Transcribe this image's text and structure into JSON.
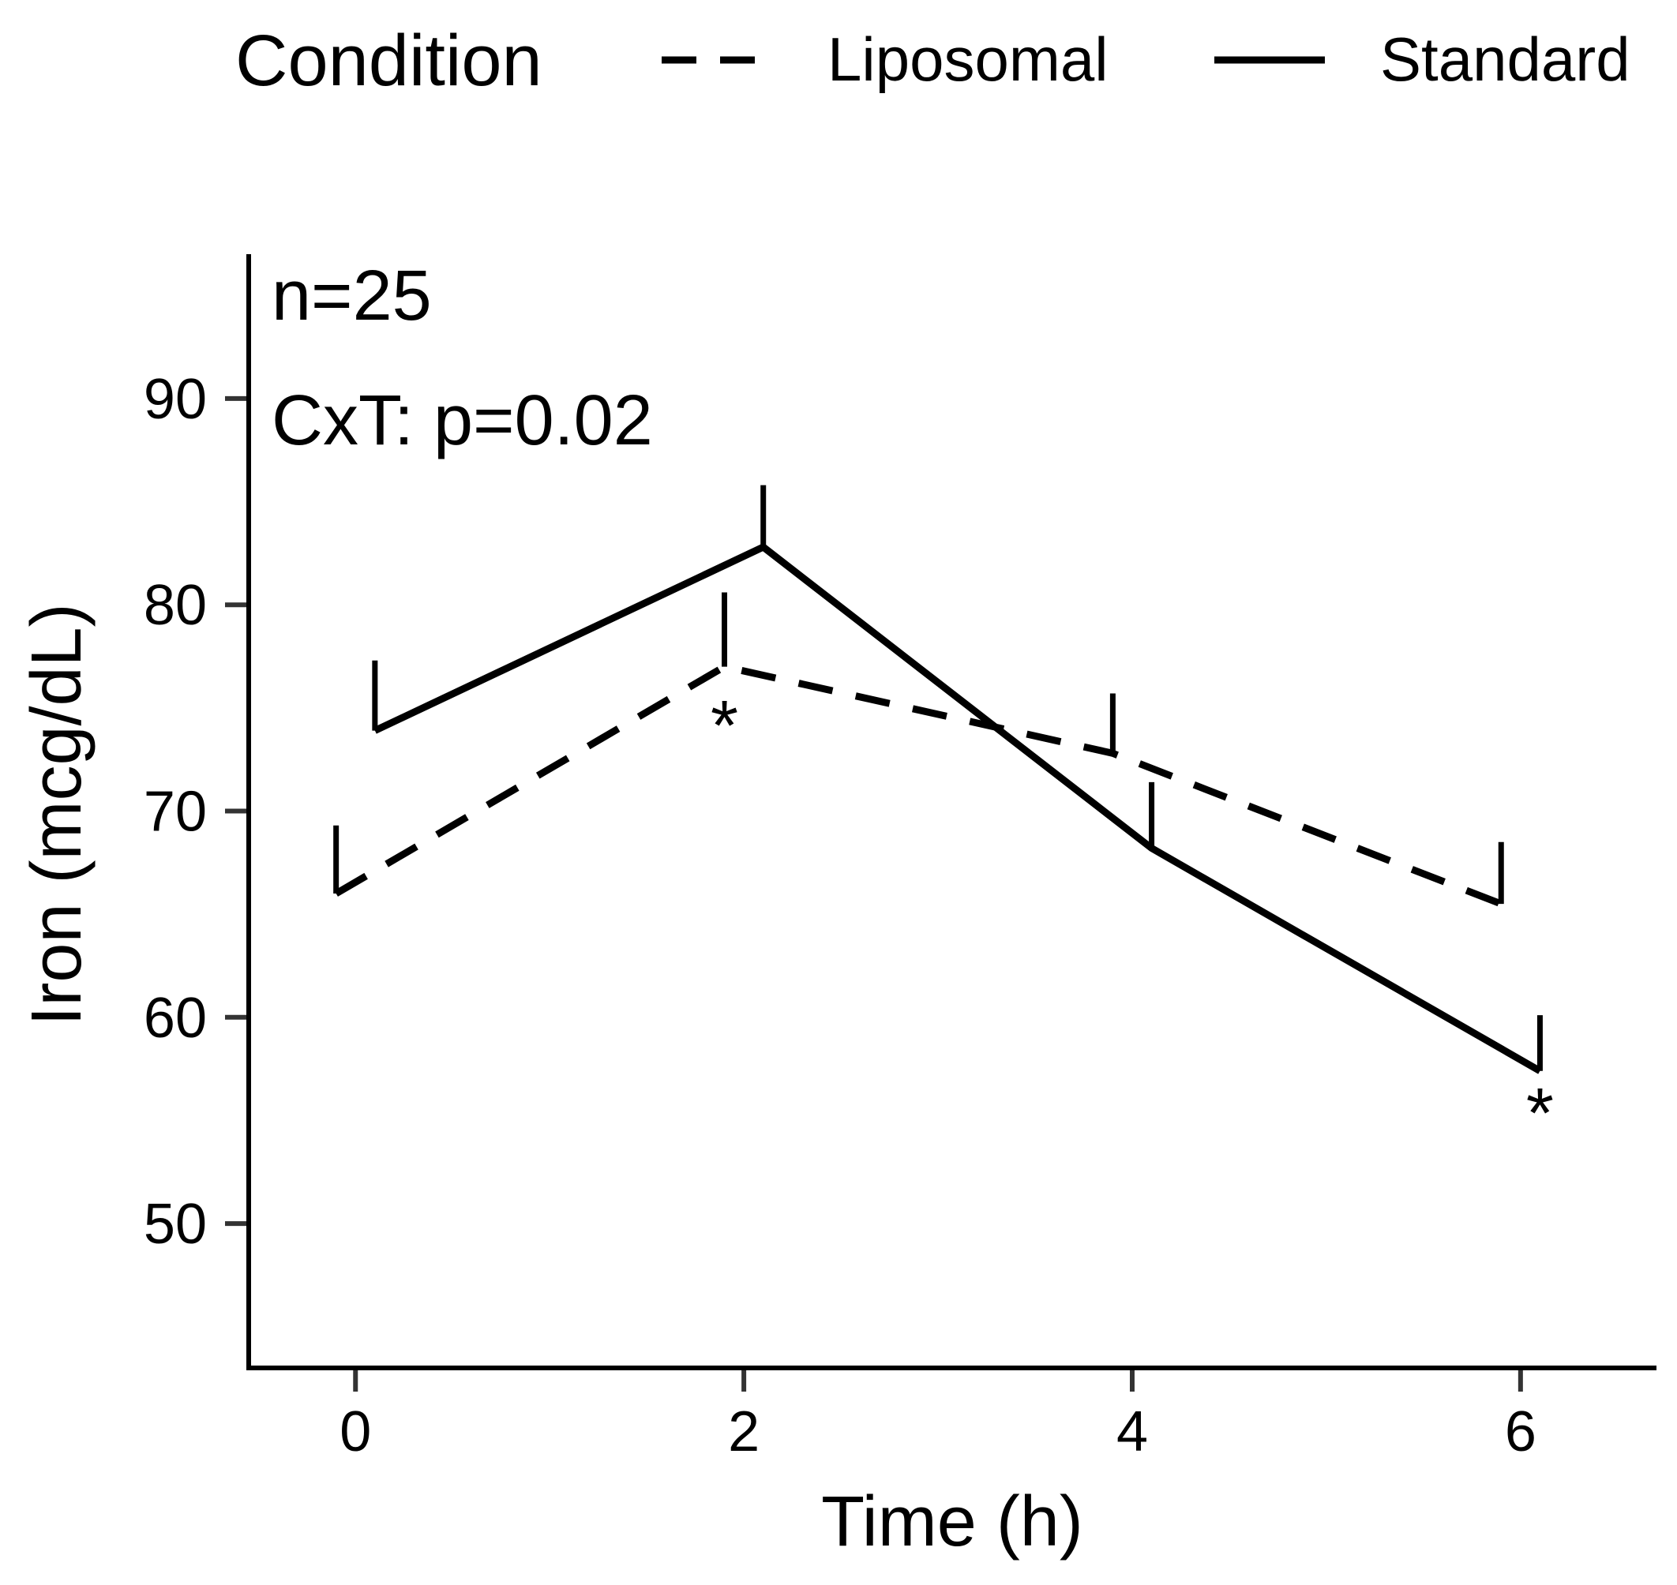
{
  "chart_data": {
    "type": "line",
    "xlabel": "Time (h)",
    "ylabel": "Iron (mcg/dL)",
    "x_ticks": [
      "0",
      "2",
      "4",
      "6"
    ],
    "y_ticks": [
      "50",
      "60",
      "70",
      "80",
      "90"
    ],
    "xlim": [
      -0.55,
      6.7
    ],
    "ylim": [
      43,
      97
    ],
    "grid": false,
    "legend": {
      "title": "Condition",
      "position": "top",
      "entries": [
        {
          "label": "Liposomal",
          "series": "Liposomal"
        },
        {
          "label": "Standard",
          "series": "Standard"
        }
      ]
    },
    "annotations": {
      "n": "n=25",
      "stat": "CxT: p=0.02"
    },
    "series": [
      {
        "name": "Liposomal",
        "linestyle": "dashed",
        "x": [
          -0.1,
          1.9,
          3.9,
          5.9
        ],
        "values": [
          66.0,
          77.0,
          72.8,
          65.5
        ],
        "error_upper": [
          69.3,
          80.6,
          75.7,
          68.5
        ]
      },
      {
        "name": "Standard",
        "linestyle": "solid",
        "x": [
          0.1,
          2.1,
          4.1,
          6.1
        ],
        "values": [
          73.9,
          82.8,
          68.2,
          57.4
        ],
        "error_upper": [
          77.3,
          85.8,
          71.4,
          60.1
        ]
      }
    ],
    "significance_markers": [
      {
        "label": "*",
        "x": 1.9,
        "y": 74.2
      },
      {
        "label": "*",
        "x": 6.1,
        "y": 55.4
      }
    ]
  }
}
